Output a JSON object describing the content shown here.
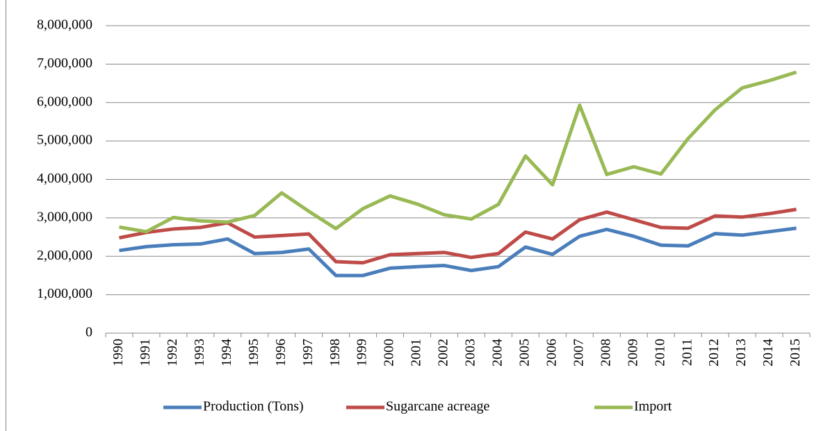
{
  "chart_data": {
    "type": "line",
    "categories": [
      "1990",
      "1991",
      "1992",
      "1993",
      "1994",
      "1995",
      "1996",
      "1997",
      "1998",
      "1999",
      "2000",
      "2001",
      "2002",
      "2003",
      "2004",
      "2005",
      "2006",
      "2007",
      "2008",
      "2009",
      "2010",
      "2011",
      "2012",
      "2013",
      "2014",
      "2015"
    ],
    "series": [
      {
        "name": "Production (Tons)",
        "color": "#4a7ebb",
        "values": [
          2150000,
          2250000,
          2300000,
          2320000,
          2450000,
          2070000,
          2100000,
          2190000,
          1500000,
          1500000,
          1690000,
          1730000,
          1760000,
          1630000,
          1730000,
          2240000,
          2050000,
          2520000,
          2700000,
          2520000,
          2290000,
          2270000,
          2590000,
          2550000,
          2640000,
          2730000
        ]
      },
      {
        "name": "Sugarcane acreage",
        "color": "#be4b48",
        "values": [
          2480000,
          2620000,
          2710000,
          2750000,
          2870000,
          2500000,
          2540000,
          2580000,
          1860000,
          1830000,
          2040000,
          2070000,
          2100000,
          1970000,
          2070000,
          2630000,
          2450000,
          2950000,
          3150000,
          2950000,
          2750000,
          2730000,
          3050000,
          3020000,
          3110000,
          3220000
        ]
      },
      {
        "name": "Import",
        "color": "#98b954",
        "values": [
          2760000,
          2640000,
          3010000,
          2920000,
          2890000,
          3060000,
          3650000,
          3170000,
          2720000,
          3240000,
          3570000,
          3360000,
          3080000,
          2970000,
          3350000,
          4610000,
          3860000,
          5930000,
          4130000,
          4330000,
          4140000,
          5060000,
          5810000,
          6380000,
          6570000,
          6790000
        ]
      }
    ],
    "ylim": [
      0,
      8000000
    ],
    "yticks": [
      0,
      {
        "value": 1000000,
        "label": "1,000,000"
      },
      {
        "value": 2000000,
        "label": "2,000,000"
      },
      {
        "value": 3000000,
        "label": "3,000,000"
      },
      {
        "value": 4000000,
        "label": "4,000,000"
      },
      {
        "value": 5000000,
        "label": "5,000,000"
      },
      {
        "value": 6000000,
        "label": "6,000,000"
      },
      {
        "value": 7000000,
        "label": "7,000,000"
      },
      {
        "value": 8000000,
        "label": "8,000,000"
      }
    ],
    "grid": true,
    "legend": "bottom"
  }
}
